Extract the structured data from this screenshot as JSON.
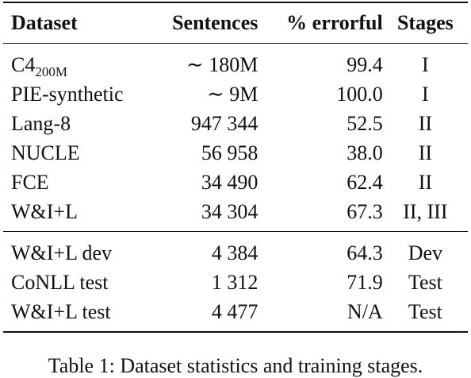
{
  "table": {
    "headers": {
      "dataset": "Dataset",
      "sentences": "Sentences",
      "errorful": "% errorful",
      "stages": "Stages"
    },
    "train_rows": [
      {
        "dataset": "C4",
        "dataset_sub": "200M",
        "sentences": "∼ 180M",
        "errorful": "99.4",
        "stages": "I"
      },
      {
        "dataset": "PIE-synthetic",
        "dataset_sub": "",
        "sentences": "∼ 9M",
        "errorful": "100.0",
        "stages": "I"
      },
      {
        "dataset": "Lang-8",
        "dataset_sub": "",
        "sentences": "947 344",
        "errorful": "52.5",
        "stages": "II"
      },
      {
        "dataset": "NUCLE",
        "dataset_sub": "",
        "sentences": "56 958",
        "errorful": "38.0",
        "stages": "II"
      },
      {
        "dataset": "FCE",
        "dataset_sub": "",
        "sentences": "34 490",
        "errorful": "62.4",
        "stages": "II"
      },
      {
        "dataset": "W&I+L",
        "dataset_sub": "",
        "sentences": "34 304",
        "errorful": "67.3",
        "stages": "II, III"
      }
    ],
    "eval_rows": [
      {
        "dataset": "W&I+L dev",
        "sentences": "4 384",
        "errorful": "64.3",
        "stages": "Dev"
      },
      {
        "dataset": "CoNLL test",
        "sentences": "1 312",
        "errorful": "71.9",
        "stages": "Test"
      },
      {
        "dataset": "W&I+L test",
        "sentences": "4 477",
        "errorful": "N/A",
        "stages": "Test"
      }
    ]
  },
  "caption": "Table 1: Dataset statistics and training stages."
}
